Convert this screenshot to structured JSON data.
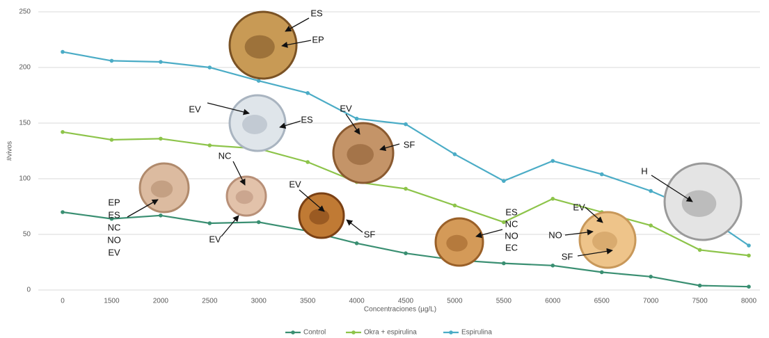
{
  "chart_data": {
    "type": "line",
    "x_label": "Concentraciones (µg/L)",
    "y_label": "#vivos",
    "categories": [
      "0",
      "1500",
      "2000",
      "2500",
      "3000",
      "3500",
      "4000",
      "4500",
      "5000",
      "5500",
      "6000",
      "6500",
      "7000",
      "7500",
      "8000"
    ],
    "series": [
      {
        "name": "Control",
        "color": "#3a8f72",
        "values": [
          70,
          64,
          67,
          60,
          61,
          53,
          42,
          33,
          27,
          24,
          22,
          16,
          12,
          4,
          3
        ]
      },
      {
        "name": "Okra + espirulina",
        "color": "#8dc44a",
        "values": [
          142,
          135,
          136,
          130,
          127,
          115,
          97,
          91,
          76,
          61,
          82,
          70,
          58,
          36,
          31
        ]
      },
      {
        "name": "Espirulina",
        "color": "#4bacc6",
        "values": [
          214,
          206,
          205,
          200,
          188,
          177,
          154,
          149,
          122,
          98,
          116,
          104,
          89,
          70,
          40
        ]
      }
    ],
    "ylim": [
      0,
      250
    ],
    "yticks": [
      0,
      50,
      100,
      150,
      200,
      250
    ],
    "grid": true,
    "legend": "bottom",
    "annotations": [
      [
        "ES"
      ],
      [
        "EP"
      ],
      [
        "EV"
      ],
      [
        "ES"
      ],
      [
        "EV"
      ],
      [
        "SF"
      ],
      [
        "NC"
      ],
      [
        "EP",
        "ES",
        "NC",
        "NO",
        "EV"
      ],
      [
        "EV"
      ],
      [
        "EV"
      ],
      [
        "SF"
      ],
      [
        "ES",
        "NC",
        "NO",
        "EC"
      ],
      [
        "EV"
      ],
      [
        "NO"
      ],
      [
        "SF"
      ],
      [
        "H"
      ]
    ]
  }
}
